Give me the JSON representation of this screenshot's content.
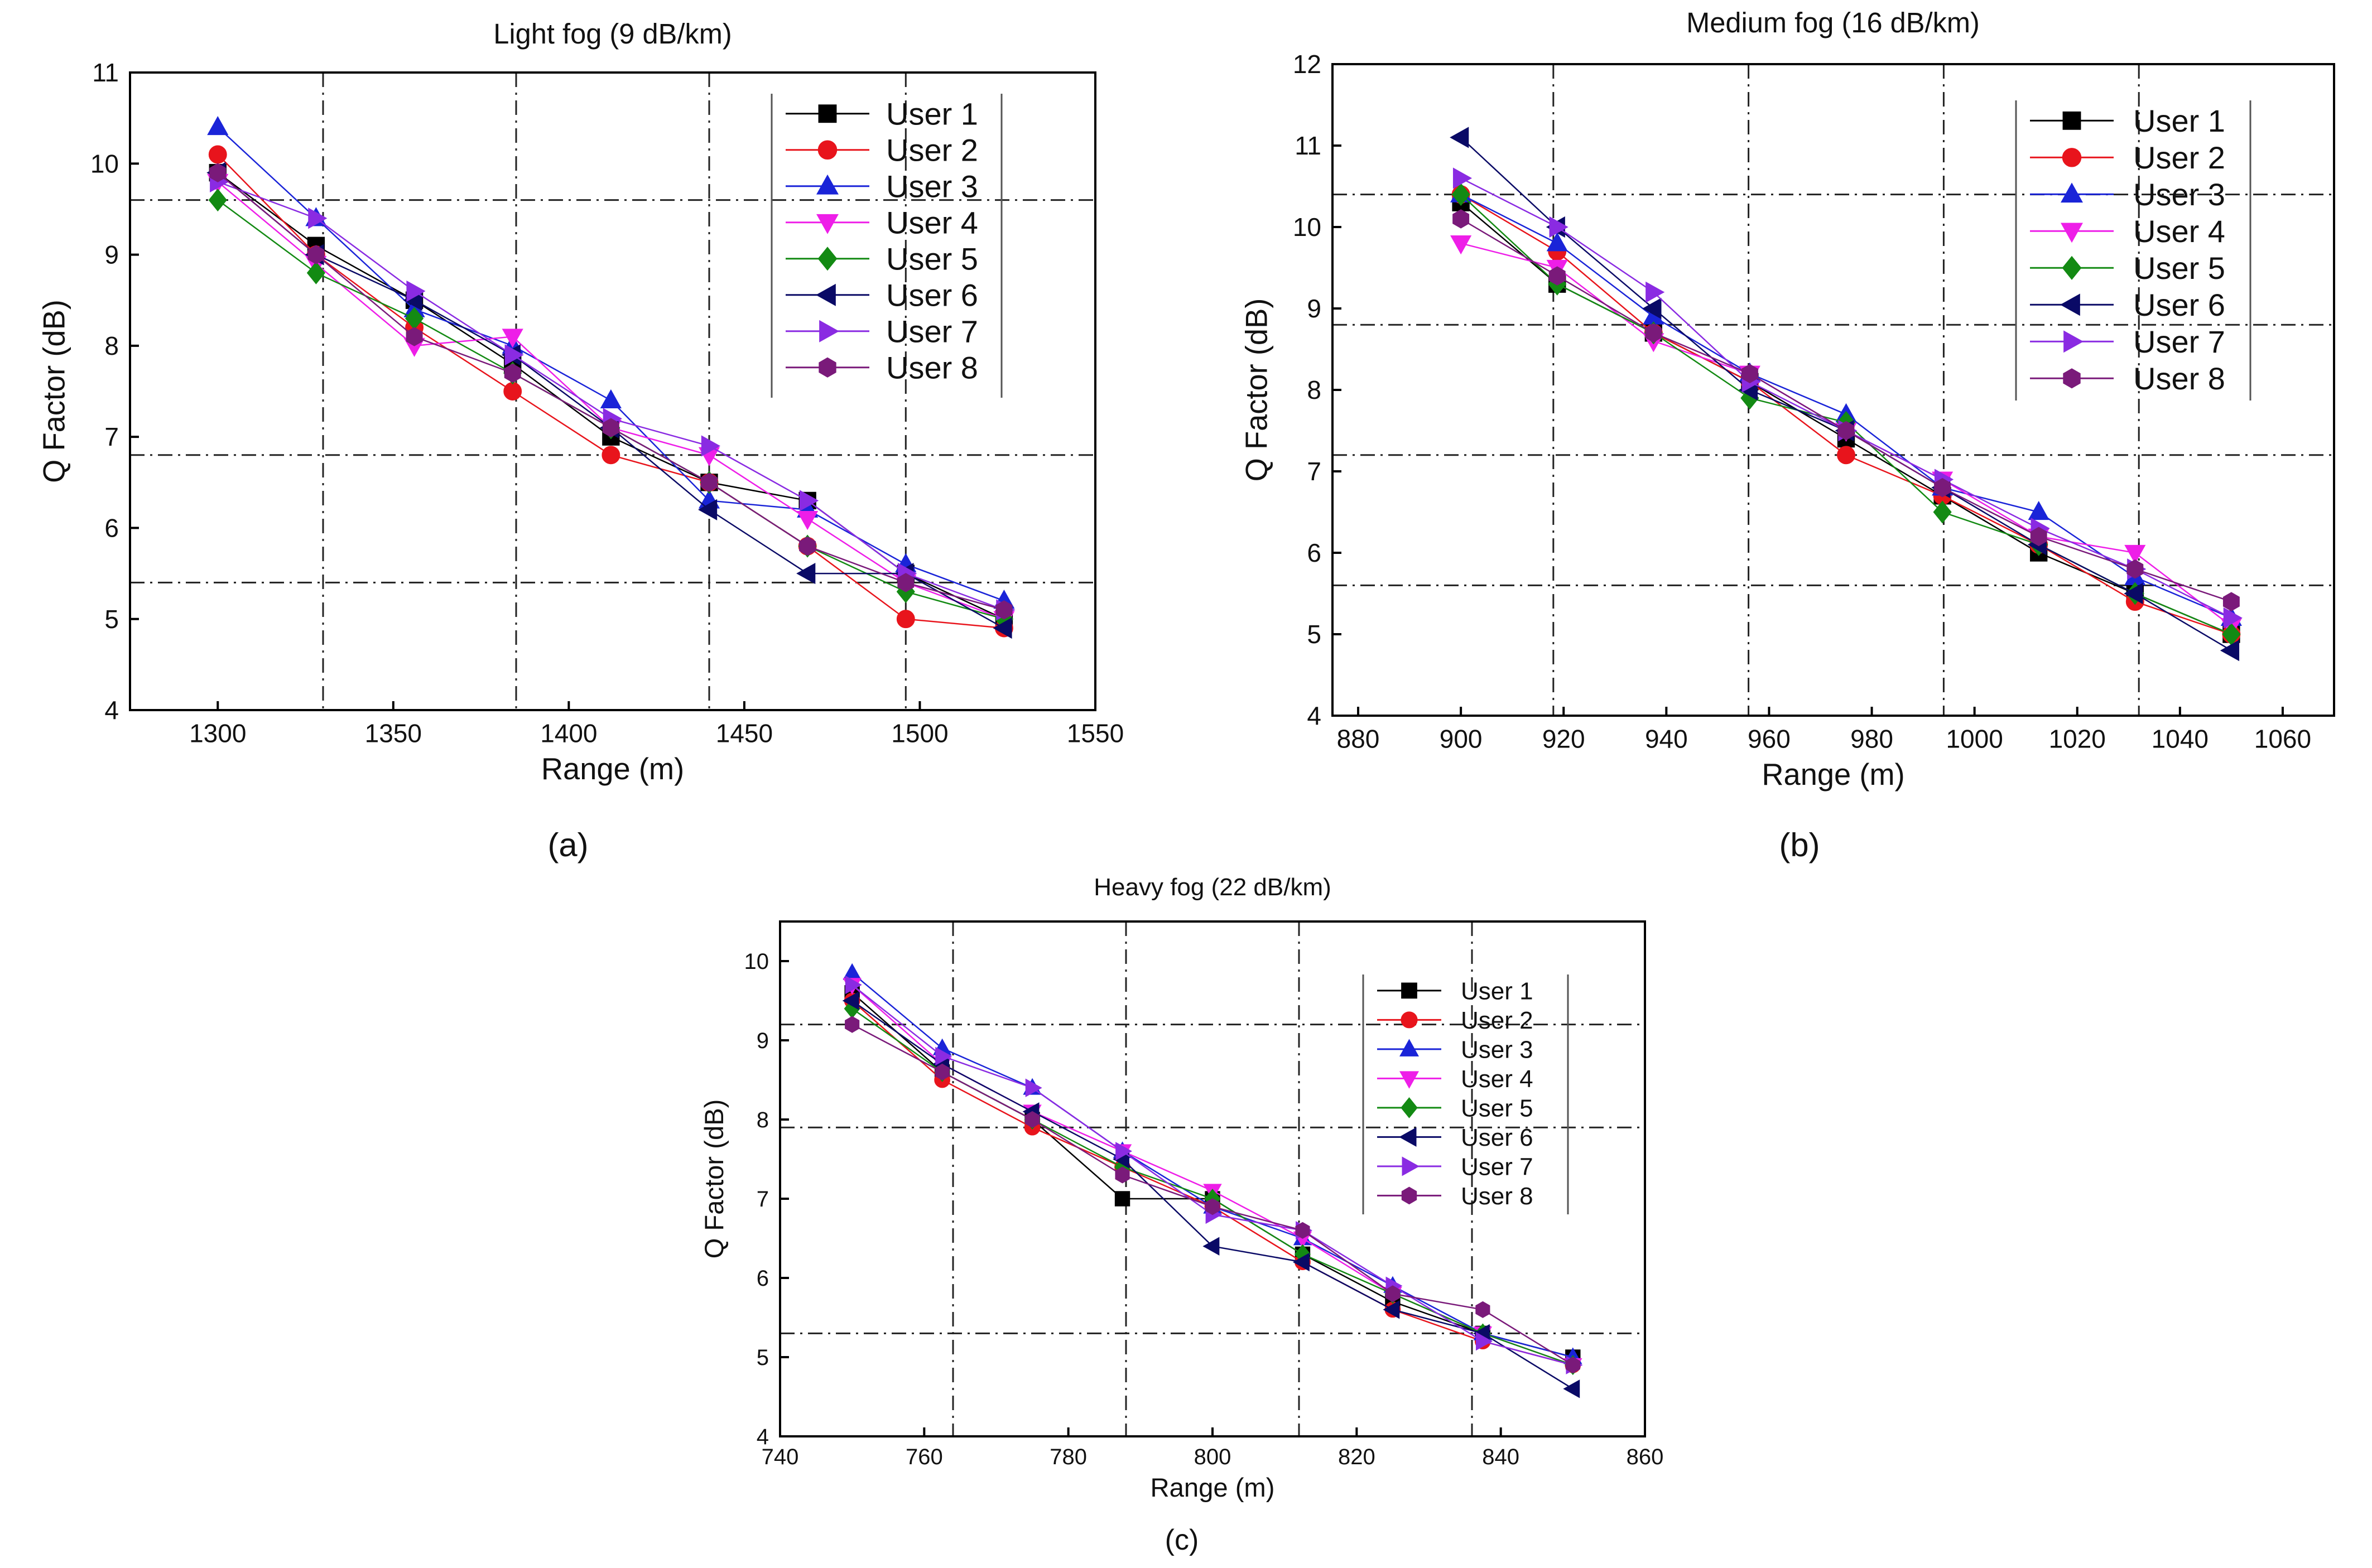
{
  "chart_data": [
    {
      "type": "line",
      "panel_label": "(a)",
      "title": "Light fog (9 dB/km)",
      "xlabel": "Range (m)",
      "ylabel": "Q Factor (dB)",
      "xlim": [
        1275,
        1550
      ],
      "ylim": [
        4,
        11
      ],
      "xticks": [
        1300,
        1350,
        1400,
        1450,
        1500,
        1550
      ],
      "yticks": [
        4,
        5,
        6,
        7,
        8,
        9,
        10,
        11
      ],
      "grid_x": [
        1330,
        1385,
        1440,
        1496
      ],
      "grid_y": [
        5.4,
        6.8,
        9.6
      ],
      "legend_position": "top-right",
      "x": [
        1300,
        1328,
        1356,
        1384,
        1412,
        1440,
        1468,
        1496,
        1524
      ],
      "series": [
        {
          "name": "User 1",
          "color": "#000000",
          "marker": "square",
          "values": [
            9.9,
            9.1,
            8.5,
            7.8,
            7.0,
            6.5,
            6.3,
            5.5,
            5.0
          ]
        },
        {
          "name": "User 2",
          "color": "#e8141c",
          "marker": "circle",
          "values": [
            10.1,
            9.0,
            8.2,
            7.5,
            6.8,
            6.5,
            5.8,
            5.0,
            4.9
          ]
        },
        {
          "name": "User 3",
          "color": "#1a24d8",
          "marker": "triangle-up",
          "values": [
            10.4,
            9.4,
            8.4,
            8.0,
            7.4,
            6.3,
            6.2,
            5.6,
            5.2
          ]
        },
        {
          "name": "User 4",
          "color": "#ee1ee8",
          "marker": "triangle-down",
          "values": [
            9.8,
            8.9,
            8.0,
            8.1,
            7.1,
            6.8,
            6.1,
            5.4,
            5.0
          ]
        },
        {
          "name": "User 5",
          "color": "#138a13",
          "marker": "diamond",
          "values": [
            9.6,
            8.8,
            8.3,
            7.7,
            7.1,
            6.5,
            5.8,
            5.3,
            5.0
          ]
        },
        {
          "name": "User 6",
          "color": "#0a0a66",
          "marker": "triangle-left",
          "values": [
            9.9,
            9.0,
            8.5,
            7.9,
            7.1,
            6.2,
            5.5,
            5.5,
            4.9
          ]
        },
        {
          "name": "User 7",
          "color": "#8a2be2",
          "marker": "triangle-right",
          "values": [
            9.8,
            9.4,
            8.6,
            7.9,
            7.2,
            6.9,
            6.3,
            5.5,
            5.1
          ]
        },
        {
          "name": "User 8",
          "color": "#7a1a7a",
          "marker": "hexagon",
          "values": [
            9.9,
            9.0,
            8.1,
            7.7,
            7.1,
            6.5,
            5.8,
            5.4,
            5.1
          ]
        }
      ]
    },
    {
      "type": "line",
      "panel_label": "(b)",
      "title": "Medium fog (16 dB/km)",
      "xlabel": "Range (m)",
      "ylabel": "Q Factor (dB)",
      "xlim": [
        875,
        1070
      ],
      "ylim": [
        4,
        12
      ],
      "xticks": [
        880,
        900,
        920,
        940,
        960,
        980,
        1000,
        1020,
        1040,
        1060
      ],
      "yticks": [
        4,
        5,
        6,
        7,
        8,
        9,
        10,
        11,
        12
      ],
      "grid_x": [
        918,
        956,
        994,
        1032
      ],
      "grid_y": [
        5.6,
        7.2,
        8.8,
        10.4
      ],
      "legend_position": "top-right",
      "x": [
        900,
        918.75,
        937.5,
        956.25,
        975,
        993.75,
        1012.5,
        1031.25,
        1050
      ],
      "series": [
        {
          "name": "User 1",
          "color": "#000000",
          "marker": "square",
          "values": [
            10.3,
            9.3,
            8.7,
            8.1,
            7.4,
            6.7,
            6.0,
            5.5,
            5.0
          ]
        },
        {
          "name": "User 2",
          "color": "#e8141c",
          "marker": "circle",
          "values": [
            10.4,
            9.7,
            8.7,
            8.1,
            7.2,
            6.7,
            6.1,
            5.4,
            5.0
          ]
        },
        {
          "name": "User 3",
          "color": "#1a24d8",
          "marker": "triangle-up",
          "values": [
            10.4,
            9.8,
            8.9,
            8.2,
            7.7,
            6.8,
            6.5,
            5.7,
            5.2
          ]
        },
        {
          "name": "User 4",
          "color": "#ee1ee8",
          "marker": "triangle-down",
          "values": [
            9.8,
            9.5,
            8.6,
            8.2,
            7.5,
            6.9,
            6.2,
            6.0,
            5.1
          ]
        },
        {
          "name": "User 5",
          "color": "#138a13",
          "marker": "diamond",
          "values": [
            10.4,
            9.3,
            8.7,
            7.9,
            7.6,
            6.5,
            6.1,
            5.5,
            5.0
          ]
        },
        {
          "name": "User 6",
          "color": "#0a0a66",
          "marker": "triangle-left",
          "values": [
            11.1,
            10.0,
            9.0,
            8.0,
            7.5,
            6.8,
            6.1,
            5.5,
            4.8
          ]
        },
        {
          "name": "User 7",
          "color": "#8a2be2",
          "marker": "triangle-right",
          "values": [
            10.6,
            10.0,
            9.2,
            8.1,
            7.5,
            6.9,
            6.3,
            5.8,
            5.2
          ]
        },
        {
          "name": "User 8",
          "color": "#7a1a7a",
          "marker": "hexagon",
          "values": [
            10.1,
            9.4,
            8.7,
            8.2,
            7.5,
            6.8,
            6.2,
            5.8,
            5.4
          ]
        }
      ]
    },
    {
      "type": "line",
      "panel_label": "(c)",
      "title": "Heavy fog (22 dB/km)",
      "xlabel": "Range (m)",
      "ylabel": "Q Factor (dB)",
      "xlim": [
        740,
        860
      ],
      "ylim": [
        4,
        10.5
      ],
      "xticks": [
        740,
        760,
        780,
        800,
        820,
        840,
        860
      ],
      "yticks": [
        4,
        5,
        6,
        7,
        8,
        9,
        10
      ],
      "grid_x": [
        764,
        788,
        812,
        836
      ],
      "grid_y": [
        5.3,
        7.9,
        9.2
      ],
      "legend_position": "top-right",
      "x": [
        750,
        762.5,
        775,
        787.5,
        800,
        812.5,
        825,
        837.5,
        850
      ],
      "series": [
        {
          "name": "User 1",
          "color": "#000000",
          "marker": "square",
          "values": [
            9.6,
            8.6,
            8.0,
            7.0,
            7.0,
            6.3,
            5.7,
            5.3,
            5.0
          ]
        },
        {
          "name": "User 2",
          "color": "#e8141c",
          "marker": "circle",
          "values": [
            9.5,
            8.5,
            7.9,
            7.4,
            6.9,
            6.2,
            5.6,
            5.2,
            4.9
          ]
        },
        {
          "name": "User 3",
          "color": "#1a24d8",
          "marker": "triangle-up",
          "values": [
            9.85,
            8.9,
            8.4,
            7.6,
            6.9,
            6.5,
            5.9,
            5.3,
            5.0
          ]
        },
        {
          "name": "User 4",
          "color": "#ee1ee8",
          "marker": "triangle-down",
          "values": [
            9.7,
            8.7,
            8.1,
            7.6,
            7.1,
            6.5,
            5.8,
            5.3,
            4.9
          ]
        },
        {
          "name": "User 5",
          "color": "#138a13",
          "marker": "diamond",
          "values": [
            9.4,
            8.6,
            8.0,
            7.4,
            7.0,
            6.3,
            5.8,
            5.3,
            4.9
          ]
        },
        {
          "name": "User 6",
          "color": "#0a0a66",
          "marker": "triangle-left",
          "values": [
            9.5,
            8.7,
            8.1,
            7.5,
            6.4,
            6.2,
            5.6,
            5.3,
            4.6
          ]
        },
        {
          "name": "User 7",
          "color": "#8a2be2",
          "marker": "triangle-right",
          "values": [
            9.7,
            8.8,
            8.4,
            7.6,
            6.8,
            6.6,
            5.9,
            5.2,
            4.9
          ]
        },
        {
          "name": "User 8",
          "color": "#7a1a7a",
          "marker": "hexagon",
          "values": [
            9.2,
            8.6,
            8.0,
            7.3,
            6.9,
            6.6,
            5.8,
            5.6,
            4.9
          ]
        }
      ]
    }
  ]
}
